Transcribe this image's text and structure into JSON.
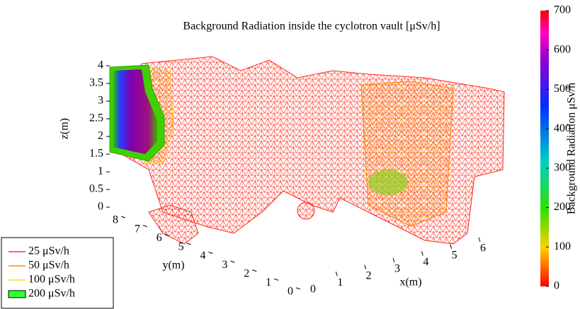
{
  "chart_data": {
    "type": "isosurface",
    "title": "Background Radiation inside the cyclotron vault [μSv/h]",
    "xlabel": "x(m)",
    "ylabel": "y(m)",
    "zlabel": "z(m)",
    "xlim": [
      0,
      7
    ],
    "xticks": [
      0,
      1,
      2,
      3,
      4,
      5,
      6
    ],
    "ylim": [
      0,
      8.5
    ],
    "yticks": [
      0,
      1,
      2,
      3,
      4,
      5,
      6,
      7,
      8
    ],
    "zlim": [
      0,
      4
    ],
    "zticks": [
      0,
      0.5,
      1,
      1.5,
      2,
      2.5,
      3,
      3.5,
      4
    ],
    "colorbar": {
      "label": "Background Radiation μSv/h",
      "lim": [
        0,
        700
      ],
      "ticks": [
        0,
        100,
        200,
        300,
        400,
        500,
        600,
        700
      ]
    },
    "series": [
      {
        "name": "25 μSv/h",
        "color": "#ff3030",
        "kind": "line"
      },
      {
        "name": "50 μSv/h",
        "color": "#ff8c00",
        "kind": "line"
      },
      {
        "name": "100 μSv/h",
        "color": "#ffe000",
        "kind": "line"
      },
      {
        "name": "200 μSv/h",
        "color": "#33ff33",
        "kind": "patch"
      }
    ]
  }
}
